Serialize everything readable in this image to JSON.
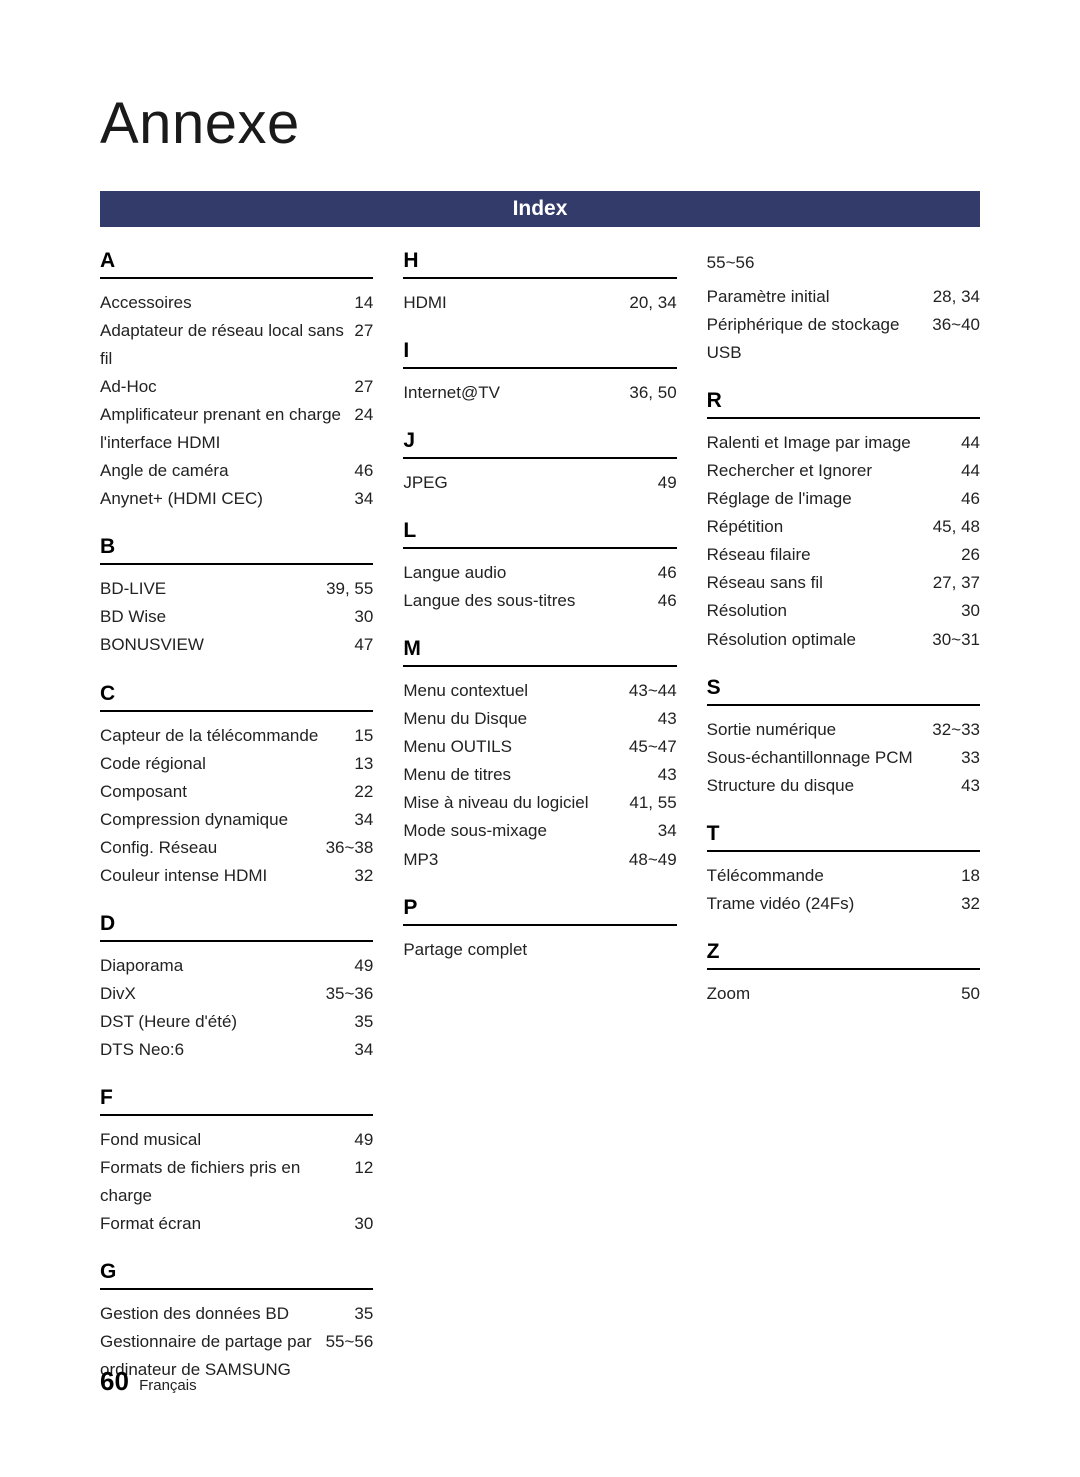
{
  "title": "Annexe",
  "index_bar": "Index",
  "col1": {
    "A": [
      {
        "term": "Accessoires",
        "pg": "14"
      },
      {
        "term": "Adaptateur de réseau local sans fil",
        "pg": "27"
      },
      {
        "term": "Ad-Hoc",
        "pg": "27"
      },
      {
        "term": "Amplificateur prenant en charge l'interface HDMI",
        "pg": "24"
      },
      {
        "term": "Angle de caméra",
        "pg": "46"
      },
      {
        "term": "Anynet+ (HDMI CEC)",
        "pg": "34"
      }
    ],
    "B": [
      {
        "term": "BD-LIVE",
        "pg": "39, 55"
      },
      {
        "term": "BD Wise",
        "pg": "30"
      },
      {
        "term": "BONUSVIEW",
        "pg": "47"
      }
    ],
    "C": [
      {
        "term": "Capteur de la télécommande",
        "pg": "15"
      },
      {
        "term": "Code régional",
        "pg": "13"
      },
      {
        "term": "Composant",
        "pg": "22"
      },
      {
        "term": "Compression dynamique",
        "pg": "34"
      },
      {
        "term": "Config. Réseau",
        "pg": "36~38"
      },
      {
        "term": "Couleur intense HDMI",
        "pg": "32"
      }
    ],
    "D": [
      {
        "term": "Diaporama",
        "pg": "49"
      },
      {
        "term": "DivX",
        "pg": "35~36"
      },
      {
        "term": "DST (Heure d'été)",
        "pg": "35"
      },
      {
        "term": "DTS Neo:6",
        "pg": "34"
      }
    ],
    "F": [
      {
        "term": "Fond musical",
        "pg": "49"
      },
      {
        "term": "Formats de fichiers pris en charge",
        "pg": "12"
      },
      {
        "term": "Format écran",
        "pg": "30"
      }
    ],
    "G": [
      {
        "term": "Gestion des données BD",
        "pg": "35"
      },
      {
        "term": "Gestionnaire de partage par ordinateur de SAMSUNG",
        "pg": "55~56"
      }
    ]
  },
  "col2": {
    "H": [
      {
        "term": "HDMI",
        "pg": "20, 34"
      }
    ],
    "I": [
      {
        "term": "Internet@TV",
        "pg": "36, 50"
      }
    ],
    "J": [
      {
        "term": "JPEG",
        "pg": "49"
      }
    ],
    "L": [
      {
        "term": "Langue audio",
        "pg": "46"
      },
      {
        "term": "Langue des sous-titres",
        "pg": "46"
      }
    ],
    "M": [
      {
        "term": "Menu contextuel",
        "pg": "43~44"
      },
      {
        "term": "Menu du Disque",
        "pg": "43"
      },
      {
        "term": "Menu OUTILS",
        "pg": "45~47"
      },
      {
        "term": "Menu de titres",
        "pg": "43"
      },
      {
        "term": "Mise à niveau du logiciel",
        "pg": "41, 55"
      },
      {
        "term": "Mode sous-mixage",
        "pg": "34"
      },
      {
        "term": "MP3",
        "pg": "48~49"
      }
    ],
    "P": [
      {
        "term": "Partage complet",
        "pg": ""
      }
    ]
  },
  "col3_orphans": [
    "55~56"
  ],
  "col3_pre_R": [
    {
      "term": "Paramètre initial",
      "pg": "28, 34"
    },
    {
      "term": "Périphérique de stockage USB",
      "pg": "36~40"
    }
  ],
  "col3": {
    "R": [
      {
        "term": "Ralenti et Image par image",
        "pg": "44"
      },
      {
        "term": "Rechercher et Ignorer",
        "pg": "44"
      },
      {
        "term": "Réglage de l'image",
        "pg": "46"
      },
      {
        "term": "Répétition",
        "pg": "45, 48"
      },
      {
        "term": "Réseau filaire",
        "pg": "26"
      },
      {
        "term": "Réseau sans fil",
        "pg": "27, 37"
      },
      {
        "term": "Résolution",
        "pg": "30"
      },
      {
        "term": "Résolution optimale",
        "pg": "30~31"
      }
    ],
    "S": [
      {
        "term": "Sortie numérique",
        "pg": "32~33"
      },
      {
        "term": "Sous-échantillonnage PCM",
        "pg": "33"
      },
      {
        "term": "Structure du disque",
        "pg": "43"
      }
    ],
    "T": [
      {
        "term": "Télécommande",
        "pg": "18"
      },
      {
        "term": "Trame vidéo (24Fs)",
        "pg": "32"
      }
    ],
    "Z": [
      {
        "term": "Zoom",
        "pg": "50"
      }
    ]
  },
  "letters": {
    "A": "A",
    "B": "B",
    "C": "C",
    "D": "D",
    "F": "F",
    "G": "G",
    "H": "H",
    "I": "I",
    "J": "J",
    "L": "L",
    "M": "M",
    "P": "P",
    "R": "R",
    "S": "S",
    "T": "T",
    "Z": "Z"
  },
  "footer": {
    "pgnum": "60",
    "lang": "Français"
  },
  "colors": {
    "bar_bg": "#333b6a",
    "bar_text": "#ffffff",
    "text": "#222222",
    "rule": "#000000",
    "page_bg": "#ffffff"
  }
}
